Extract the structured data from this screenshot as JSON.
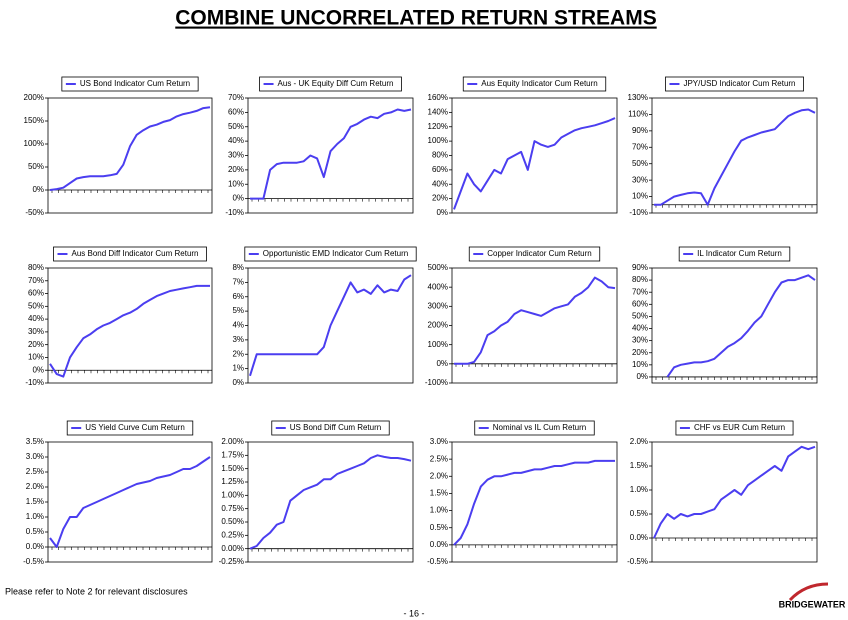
{
  "title": "COMBINE UNCORRELATED RETURN STREAMS",
  "footnote": "Please refer to Note 2 for relevant disclosures",
  "page_number": "- 16 -",
  "logo": "BRIDGEWATER",
  "chart_data": [
    {
      "type": "line",
      "series": [
        {
          "name": "US Bond Indicator Cum Return",
          "color": "#4b3ef0",
          "values": [
            0,
            2,
            5,
            15,
            25,
            28,
            30,
            30,
            30,
            32,
            35,
            55,
            95,
            120,
            130,
            138,
            142,
            148,
            152,
            160,
            165,
            168,
            172,
            178,
            180
          ]
        }
      ],
      "ylim": [
        -50,
        200
      ],
      "yticks": [
        {
          "value": -50,
          "label": "-50%"
        },
        {
          "value": 0,
          "label": "0%"
        },
        {
          "value": 50,
          "label": "50%"
        },
        {
          "value": 100,
          "label": "100%"
        },
        {
          "value": 150,
          "label": "150%"
        },
        {
          "value": 200,
          "label": "200%"
        }
      ]
    },
    {
      "type": "line",
      "series": [
        {
          "name": "Aus - UK Equity Diff Cum Return",
          "color": "#4b3ef0",
          "values": [
            0,
            0,
            0,
            20,
            24,
            25,
            25,
            25,
            26,
            30,
            28,
            15,
            33,
            38,
            42,
            50,
            52,
            55,
            57,
            56,
            59,
            60,
            62,
            61,
            62
          ]
        }
      ],
      "ylim": [
        -10,
        70
      ],
      "yticks": [
        {
          "value": -10,
          "label": "-10%"
        },
        {
          "value": 0,
          "label": "0%"
        },
        {
          "value": 10,
          "label": "10%"
        },
        {
          "value": 20,
          "label": "20%"
        },
        {
          "value": 30,
          "label": "30%"
        },
        {
          "value": 40,
          "label": "40%"
        },
        {
          "value": 50,
          "label": "50%"
        },
        {
          "value": 60,
          "label": "60%"
        },
        {
          "value": 70,
          "label": "70%"
        }
      ]
    },
    {
      "type": "line",
      "series": [
        {
          "name": "Aus Equity Indicator Cum Return",
          "color": "#4b3ef0",
          "values": [
            5,
            30,
            55,
            40,
            30,
            45,
            60,
            55,
            75,
            80,
            85,
            60,
            100,
            95,
            92,
            95,
            105,
            110,
            115,
            118,
            120,
            122,
            125,
            128,
            132
          ]
        }
      ],
      "ylim": [
        0,
        160
      ],
      "yticks": [
        {
          "value": 0,
          "label": "0%"
        },
        {
          "value": 20,
          "label": "20%"
        },
        {
          "value": 40,
          "label": "40%"
        },
        {
          "value": 60,
          "label": "60%"
        },
        {
          "value": 80,
          "label": "80%"
        },
        {
          "value": 100,
          "label": "100%"
        },
        {
          "value": 120,
          "label": "120%"
        },
        {
          "value": 140,
          "label": "140%"
        },
        {
          "value": 160,
          "label": "160%"
        }
      ]
    },
    {
      "type": "line",
      "series": [
        {
          "name": "JPY/USD Indicator Cum Return",
          "color": "#4b3ef0",
          "values": [
            0,
            0,
            5,
            10,
            12,
            14,
            15,
            14,
            0,
            20,
            35,
            50,
            65,
            78,
            82,
            85,
            88,
            90,
            92,
            100,
            108,
            112,
            115,
            116,
            112
          ]
        }
      ],
      "ylim": [
        -10,
        130
      ],
      "yticks": [
        {
          "value": -10,
          "label": "-10%"
        },
        {
          "value": 10,
          "label": "10%"
        },
        {
          "value": 30,
          "label": "30%"
        },
        {
          "value": 50,
          "label": "50%"
        },
        {
          "value": 70,
          "label": "70%"
        },
        {
          "value": 90,
          "label": "90%"
        },
        {
          "value": 110,
          "label": "110%"
        },
        {
          "value": 130,
          "label": "130%"
        }
      ]
    },
    {
      "type": "line",
      "series": [
        {
          "name": "Aus Bond Diff Indicator Cum Return",
          "color": "#4b3ef0",
          "values": [
            5,
            -3,
            -5,
            10,
            18,
            25,
            28,
            32,
            35,
            37,
            40,
            43,
            45,
            48,
            52,
            55,
            58,
            60,
            62,
            63,
            64,
            65,
            66,
            66,
            66
          ]
        }
      ],
      "ylim": [
        -10,
        80
      ],
      "yticks": [
        {
          "value": -10,
          "label": "-10%"
        },
        {
          "value": 0,
          "label": "0%"
        },
        {
          "value": 10,
          "label": "10%"
        },
        {
          "value": 20,
          "label": "20%"
        },
        {
          "value": 30,
          "label": "30%"
        },
        {
          "value": 40,
          "label": "40%"
        },
        {
          "value": 50,
          "label": "50%"
        },
        {
          "value": 60,
          "label": "60%"
        },
        {
          "value": 70,
          "label": "70%"
        },
        {
          "value": 80,
          "label": "80%"
        }
      ]
    },
    {
      "type": "line",
      "series": [
        {
          "name": "Opportunistic EMD Indicator Cum Return",
          "color": "#4b3ef0",
          "values": [
            0.5,
            2,
            2,
            2,
            2,
            2,
            2,
            2,
            2,
            2,
            2,
            2.5,
            4,
            5,
            6,
            7,
            6.3,
            6.5,
            6.2,
            6.8,
            6.3,
            6.5,
            6.4,
            7.2,
            7.5
          ]
        }
      ],
      "ylim": [
        0,
        8
      ],
      "yticks": [
        {
          "value": 0,
          "label": "0%"
        },
        {
          "value": 1,
          "label": "1%"
        },
        {
          "value": 2,
          "label": "2%"
        },
        {
          "value": 3,
          "label": "3%"
        },
        {
          "value": 4,
          "label": "4%"
        },
        {
          "value": 5,
          "label": "5%"
        },
        {
          "value": 6,
          "label": "6%"
        },
        {
          "value": 7,
          "label": "7%"
        },
        {
          "value": 8,
          "label": "8%"
        }
      ]
    },
    {
      "type": "line",
      "series": [
        {
          "name": "Copper Indicator Cum Return",
          "color": "#4b3ef0",
          "values": [
            0,
            0,
            0,
            10,
            60,
            150,
            170,
            200,
            220,
            260,
            280,
            270,
            260,
            250,
            270,
            290,
            300,
            310,
            350,
            370,
            400,
            450,
            430,
            400,
            395
          ]
        }
      ],
      "ylim": [
        -100,
        500
      ],
      "yticks": [
        {
          "value": -100,
          "label": "-100%"
        },
        {
          "value": 0,
          "label": "0%"
        },
        {
          "value": 100,
          "label": "100%"
        },
        {
          "value": 200,
          "label": "200%"
        },
        {
          "value": 300,
          "label": "300%"
        },
        {
          "value": 400,
          "label": "400%"
        },
        {
          "value": 500,
          "label": "500%"
        }
      ]
    },
    {
      "type": "line",
      "series": [
        {
          "name": "IL Indicator Cum Return",
          "color": "#4b3ef0",
          "values": [
            null,
            null,
            0,
            8,
            10,
            11,
            12,
            12,
            13,
            15,
            20,
            25,
            28,
            32,
            38,
            45,
            50,
            60,
            70,
            78,
            80,
            80,
            82,
            84,
            80
          ]
        }
      ],
      "ylim": [
        -5,
        90
      ],
      "yticks": [
        {
          "value": 0,
          "label": "0%"
        },
        {
          "value": 10,
          "label": "10%"
        },
        {
          "value": 20,
          "label": "20%"
        },
        {
          "value": 30,
          "label": "30%"
        },
        {
          "value": 40,
          "label": "40%"
        },
        {
          "value": 50,
          "label": "50%"
        },
        {
          "value": 60,
          "label": "60%"
        },
        {
          "value": 70,
          "label": "70%"
        },
        {
          "value": 80,
          "label": "80%"
        },
        {
          "value": 90,
          "label": "90%"
        }
      ]
    },
    {
      "type": "line",
      "series": [
        {
          "name": "US Yield Curve Cum Return",
          "color": "#4b3ef0",
          "values": [
            0.3,
            0,
            0.6,
            1,
            1,
            1.3,
            1.4,
            1.5,
            1.6,
            1.7,
            1.8,
            1.9,
            2.0,
            2.1,
            2.15,
            2.2,
            2.3,
            2.35,
            2.4,
            2.5,
            2.6,
            2.6,
            2.7,
            2.85,
            3.0
          ]
        }
      ],
      "ylim": [
        -0.5,
        3.5
      ],
      "yticks": [
        {
          "value": -0.5,
          "label": "-0.5%"
        },
        {
          "value": 0,
          "label": "0.0%"
        },
        {
          "value": 0.5,
          "label": "0.5%"
        },
        {
          "value": 1,
          "label": "1.0%"
        },
        {
          "value": 1.5,
          "label": "1.5%"
        },
        {
          "value": 2,
          "label": "2.0%"
        },
        {
          "value": 2.5,
          "label": "2.5%"
        },
        {
          "value": 3,
          "label": "3.0%"
        },
        {
          "value": 3.5,
          "label": "3.5%"
        }
      ]
    },
    {
      "type": "line",
      "series": [
        {
          "name": "US Bond Diff Cum Return",
          "color": "#4b3ef0",
          "values": [
            0,
            0.05,
            0.2,
            0.3,
            0.45,
            0.5,
            0.9,
            1,
            1.1,
            1.15,
            1.2,
            1.3,
            1.3,
            1.4,
            1.45,
            1.5,
            1.55,
            1.6,
            1.7,
            1.75,
            1.72,
            1.7,
            1.7,
            1.68,
            1.65
          ]
        }
      ],
      "ylim": [
        -0.25,
        2
      ],
      "yticks": [
        {
          "value": -0.25,
          "label": "-0.25%"
        },
        {
          "value": 0,
          "label": "0.00%"
        },
        {
          "value": 0.25,
          "label": "0.25%"
        },
        {
          "value": 0.5,
          "label": "0.50%"
        },
        {
          "value": 0.75,
          "label": "0.75%"
        },
        {
          "value": 1,
          "label": "1.00%"
        },
        {
          "value": 1.25,
          "label": "1.25%"
        },
        {
          "value": 1.5,
          "label": "1.50%"
        },
        {
          "value": 1.75,
          "label": "1.75%"
        },
        {
          "value": 2,
          "label": "2.00%"
        }
      ]
    },
    {
      "type": "line",
      "series": [
        {
          "name": "Nominal vs IL Cum Return",
          "color": "#4b3ef0",
          "values": [
            0,
            0.2,
            0.6,
            1.2,
            1.7,
            1.9,
            2.0,
            2.0,
            2.05,
            2.1,
            2.1,
            2.15,
            2.2,
            2.2,
            2.25,
            2.3,
            2.3,
            2.35,
            2.4,
            2.4,
            2.4,
            2.45,
            2.45,
            2.45,
            2.45
          ]
        }
      ],
      "ylim": [
        -0.5,
        3
      ],
      "yticks": [
        {
          "value": -0.5,
          "label": "-0.5%"
        },
        {
          "value": 0,
          "label": "0.0%"
        },
        {
          "value": 0.5,
          "label": "0.5%"
        },
        {
          "value": 1,
          "label": "1.0%"
        },
        {
          "value": 1.5,
          "label": "1.5%"
        },
        {
          "value": 2,
          "label": "2.0%"
        },
        {
          "value": 2.5,
          "label": "2.5%"
        },
        {
          "value": 3,
          "label": "3.0%"
        }
      ]
    },
    {
      "type": "line",
      "series": [
        {
          "name": "CHF vs EUR Cum Return",
          "color": "#4b3ef0",
          "values": [
            0,
            0.3,
            0.5,
            0.4,
            0.5,
            0.45,
            0.5,
            0.5,
            0.55,
            0.6,
            0.8,
            0.9,
            1.0,
            0.9,
            1.1,
            1.2,
            1.3,
            1.4,
            1.5,
            1.4,
            1.7,
            1.8,
            1.9,
            1.85,
            1.9
          ]
        }
      ],
      "ylim": [
        -0.5,
        2
      ],
      "yticks": [
        {
          "value": -0.5,
          "label": "-0.5%"
        },
        {
          "value": 0,
          "label": "0.0%"
        },
        {
          "value": 0.5,
          "label": "0.5%"
        },
        {
          "value": 1,
          "label": "1.0%"
        },
        {
          "value": 1.5,
          "label": "1.5%"
        },
        {
          "value": 2,
          "label": "2.0%"
        }
      ]
    }
  ]
}
